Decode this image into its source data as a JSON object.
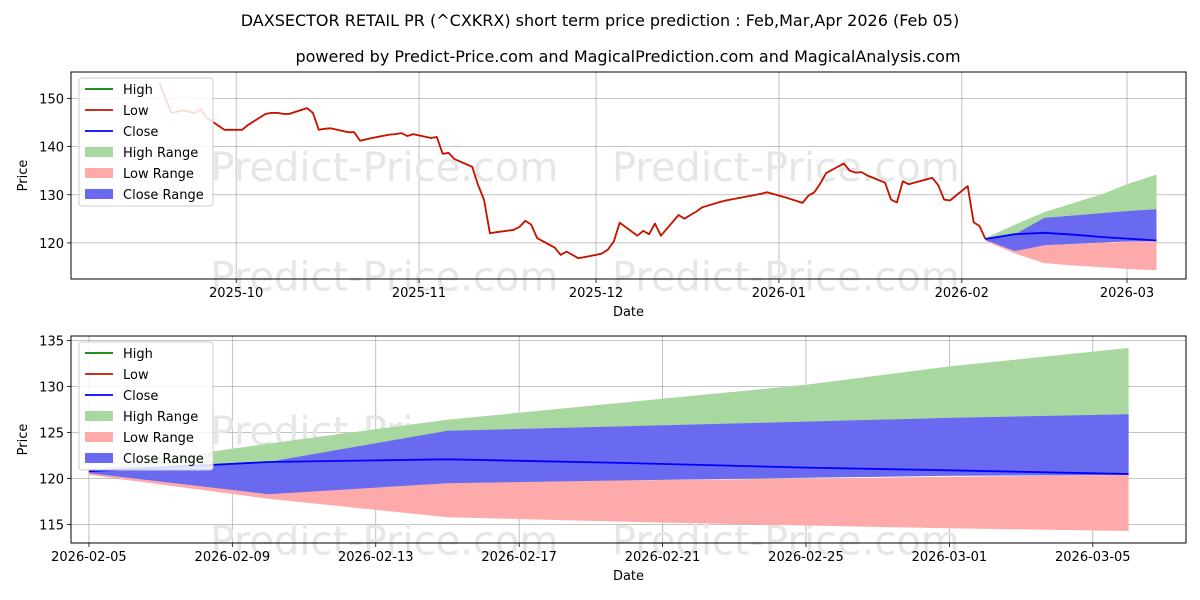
{
  "title": "DAXSECTOR RETAIL PR (^CXKRX) short term price prediction : Feb,Mar,Apr 2026 (Feb 05)",
  "subtitle": "powered by Predict-Price.com and MagicalPrediction.com and MagicalAnalysis.com",
  "watermark": "Predict-Price.com",
  "colors": {
    "high": "#008000",
    "low": "#ff0000",
    "close": "#0000ff",
    "high_range": "#a8d8a0",
    "low_range": "#ffaaaa",
    "close_range": "#6a6af0"
  },
  "legend": [
    "High",
    "Low",
    "Close",
    "High Range",
    "Low Range",
    "Close Range"
  ],
  "chart_data": [
    {
      "type": "line",
      "xlabel": "Date",
      "ylabel": "Price",
      "ylim": [
        112.5,
        155.5
      ],
      "xlim": [
        "2025-09-03",
        "2026-03-11"
      ],
      "yticks": [
        120,
        130,
        140,
        150
      ],
      "xticks": [
        "2025-10",
        "2025-11",
        "2025-12",
        "2026-01",
        "2026-02",
        "2026-03"
      ],
      "grid": true,
      "legend_position": "top-left",
      "history": {
        "x": [
          "2025-09-18",
          "2025-09-20",
          "2025-09-22",
          "2025-09-24",
          "2025-09-25",
          "2025-09-26",
          "2025-09-29",
          "2025-09-30",
          "2025-10-01",
          "2025-10-02",
          "2025-10-03",
          "2025-10-06",
          "2025-10-07",
          "2025-10-08",
          "2025-10-09",
          "2025-10-10",
          "2025-10-13",
          "2025-10-14",
          "2025-10-15",
          "2025-10-16",
          "2025-10-17",
          "2025-10-20",
          "2025-10-21",
          "2025-10-22",
          "2025-10-23",
          "2025-10-24",
          "2025-10-27",
          "2025-10-28",
          "2025-10-29",
          "2025-10-30",
          "2025-10-31",
          "2025-11-03",
          "2025-11-04",
          "2025-11-05",
          "2025-11-06",
          "2025-11-07",
          "2025-11-10",
          "2025-11-11",
          "2025-11-12",
          "2025-11-13",
          "2025-11-14",
          "2025-11-17",
          "2025-11-18",
          "2025-11-19",
          "2025-11-20",
          "2025-11-21",
          "2025-11-24",
          "2025-11-25",
          "2025-11-26",
          "2025-11-27",
          "2025-11-28",
          "2025-12-01",
          "2025-12-02",
          "2025-12-03",
          "2025-12-04",
          "2025-12-05",
          "2025-12-08",
          "2025-12-09",
          "2025-12-10",
          "2025-12-11",
          "2025-12-12",
          "2025-12-15",
          "2025-12-16",
          "2025-12-17",
          "2025-12-18",
          "2025-12-19",
          "2025-12-22",
          "2025-12-23",
          "2025-12-29",
          "2025-12-30",
          "2026-01-02",
          "2026-01-05",
          "2026-01-06",
          "2026-01-07",
          "2026-01-08",
          "2026-01-09",
          "2026-01-12",
          "2026-01-13",
          "2026-01-14",
          "2026-01-15",
          "2026-01-16",
          "2026-01-19",
          "2026-01-20",
          "2026-01-21",
          "2026-01-22",
          "2026-01-23",
          "2026-01-26",
          "2026-01-27",
          "2026-01-28",
          "2026-01-29",
          "2026-01-30",
          "2026-02-02",
          "2026-02-03",
          "2026-02-04",
          "2026-02-05"
        ],
        "low": [
          153.2,
          147.0,
          147.5,
          147.0,
          147.8,
          146.0,
          143.5,
          143.5,
          143.5,
          143.5,
          144.5,
          146.8,
          147.0,
          147.0,
          146.8,
          146.8,
          148.0,
          147.0,
          143.5,
          143.7,
          143.8,
          143.0,
          143.0,
          141.2,
          141.5,
          141.8,
          142.5,
          142.6,
          142.8,
          142.2,
          142.6,
          141.8,
          142.0,
          138.5,
          138.7,
          137.4,
          135.8,
          132.0,
          129.0,
          122.0,
          122.2,
          122.7,
          123.3,
          124.6,
          123.8,
          121.0,
          119.0,
          117.5,
          118.2,
          117.5,
          116.8,
          117.5,
          117.8,
          118.6,
          120.3,
          124.2,
          121.5,
          122.5,
          121.8,
          124.0,
          121.5,
          125.8,
          125.0,
          125.8,
          126.5,
          127.4,
          128.5,
          128.8,
          130.2,
          130.5,
          129.5,
          128.3,
          129.8,
          130.5,
          132.3,
          134.5,
          136.5,
          135.0,
          134.6,
          134.7,
          134.0,
          132.5,
          129.0,
          128.4,
          132.8,
          132.2,
          133.2,
          133.5,
          132.0,
          129.0,
          128.8,
          131.8,
          124.3,
          123.5,
          120.8
        ]
      },
      "forecast": {
        "x": [
          "2026-02-05",
          "2026-02-10",
          "2026-02-15",
          "2026-02-20",
          "2026-02-25",
          "2026-03-01",
          "2026-03-06"
        ],
        "close": [
          120.8,
          121.8,
          122.1,
          121.7,
          121.2,
          120.9,
          120.5
        ],
        "high_range": [
          [
            120.8,
            121.0
          ],
          [
            118.3,
            123.8
          ],
          [
            119.5,
            126.4
          ],
          [
            119.8,
            128.3
          ],
          [
            120.1,
            130.2
          ],
          [
            120.3,
            132.2
          ],
          [
            120.4,
            134.2
          ]
        ],
        "low_range": [
          [
            120.4,
            120.8
          ],
          [
            117.8,
            121.0
          ],
          [
            115.8,
            119.5
          ],
          [
            115.3,
            119.8
          ],
          [
            114.9,
            120.0
          ],
          [
            114.6,
            120.2
          ],
          [
            114.3,
            120.4
          ]
        ],
        "close_range": [
          [
            120.6,
            121.0
          ],
          [
            118.3,
            121.8
          ],
          [
            119.5,
            125.2
          ],
          [
            119.8,
            125.7
          ],
          [
            120.1,
            126.2
          ],
          [
            120.3,
            126.6
          ],
          [
            120.4,
            127.0
          ]
        ]
      }
    },
    {
      "type": "line",
      "xlabel": "Date",
      "ylabel": "Price",
      "ylim": [
        113.0,
        135.5
      ],
      "xlim": [
        "2026-02-04.5",
        "2026-03-07.6"
      ],
      "yticks": [
        115,
        120,
        125,
        130,
        135
      ],
      "xticks": [
        "2026-02-05",
        "2026-02-09",
        "2026-02-13",
        "2026-02-17",
        "2026-02-21",
        "2026-02-25",
        "2026-03-01",
        "2026-03-05"
      ],
      "grid": true,
      "legend_position": "top-left",
      "forecast": {
        "x": [
          "2026-02-05",
          "2026-02-10",
          "2026-02-15",
          "2026-02-20",
          "2026-02-25",
          "2026-03-01",
          "2026-03-06"
        ],
        "close": [
          120.8,
          121.8,
          122.1,
          121.7,
          121.2,
          120.9,
          120.5
        ],
        "high_range": [
          [
            120.8,
            121.0
          ],
          [
            118.3,
            123.8
          ],
          [
            119.5,
            126.4
          ],
          [
            119.8,
            128.3
          ],
          [
            120.1,
            130.2
          ],
          [
            120.3,
            132.2
          ],
          [
            120.4,
            134.2
          ]
        ],
        "low_range": [
          [
            120.4,
            120.8
          ],
          [
            117.8,
            121.0
          ],
          [
            115.8,
            119.5
          ],
          [
            115.3,
            119.8
          ],
          [
            114.9,
            120.0
          ],
          [
            114.6,
            120.2
          ],
          [
            114.3,
            120.4
          ]
        ],
        "close_range": [
          [
            120.6,
            121.0
          ],
          [
            118.3,
            121.8
          ],
          [
            119.5,
            125.2
          ],
          [
            119.8,
            125.7
          ],
          [
            120.1,
            126.2
          ],
          [
            120.3,
            126.6
          ],
          [
            120.4,
            127.0
          ]
        ]
      }
    }
  ]
}
